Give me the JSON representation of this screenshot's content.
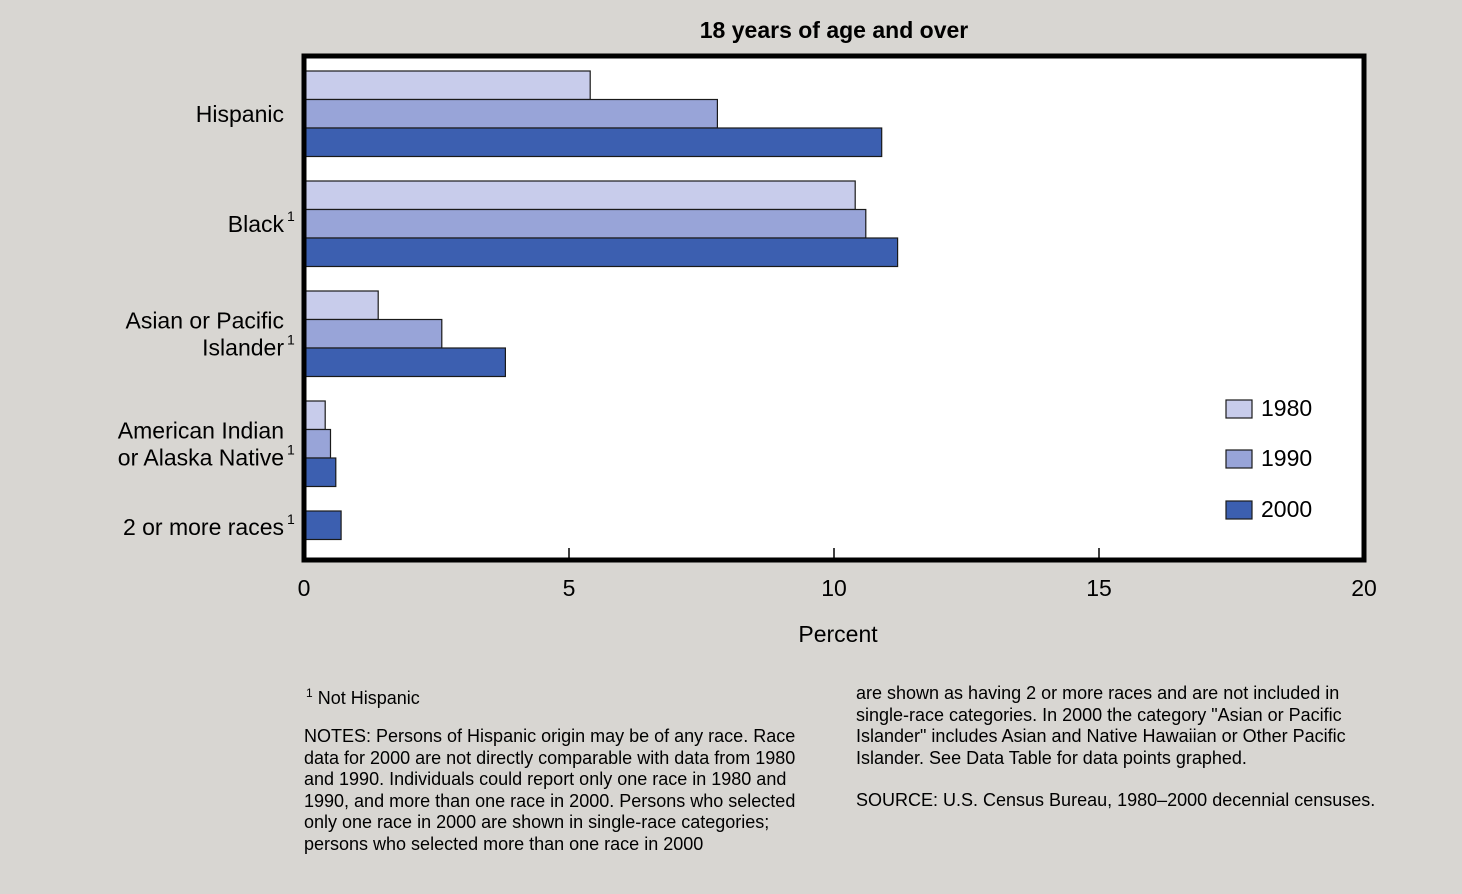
{
  "chart_data": {
    "type": "bar",
    "orientation": "horizontal",
    "title": "18 years of age and over",
    "xlabel": "Percent",
    "xlim": [
      0,
      20
    ],
    "xticks": [
      "0",
      "5",
      "10",
      "15",
      "20"
    ],
    "grid": false,
    "legend_position": "right",
    "categories": [
      {
        "label": "Hispanic",
        "lines": [
          "Hispanic"
        ],
        "sup": ""
      },
      {
        "label": "Black",
        "lines": [
          "Black"
        ],
        "sup": "1"
      },
      {
        "label": "Asian or Pacific Islander",
        "lines": [
          "Asian or Pacific",
          "Islander"
        ],
        "sup": "1"
      },
      {
        "label": "American Indian or Alaska Native",
        "lines": [
          "American Indian",
          "or Alaska Native"
        ],
        "sup": "1"
      },
      {
        "label": "2 or more races",
        "lines": [
          "2 or more races"
        ],
        "sup": "1"
      }
    ],
    "series": [
      {
        "name": "1980",
        "color": "#c8cceb",
        "values": [
          5.4,
          10.4,
          1.4,
          0.4,
          null
        ]
      },
      {
        "name": "1990",
        "color": "#98a4d8",
        "values": [
          7.8,
          10.6,
          2.6,
          0.5,
          null
        ]
      },
      {
        "name": "2000",
        "color": "#3c5fb0",
        "values": [
          10.9,
          11.2,
          3.8,
          0.6,
          0.7
        ]
      }
    ]
  },
  "footnote": {
    "marker": "1",
    "text": "Not Hispanic"
  },
  "notes_text": "NOTES: Persons of Hispanic origin may be of any race.  Race data for 2000 are not directly comparable with data from 1980 and 1990. Individuals could report only one race in 1980 and 1990, and more than one race in 2000. Persons who selected only one race in 2000 are shown in single-race categories; persons who selected more than one race in 2000 are shown as having 2 or more races and are not included in single-race categories. In 2000 the category \"Asian or Pacific Islander\" includes Asian and Native Hawaiian or Other Pacific Islander.  See Data Table for data points graphed.",
  "source_text": "SOURCE: U.S. Census Bureau, 1980–2000 decennial censuses."
}
